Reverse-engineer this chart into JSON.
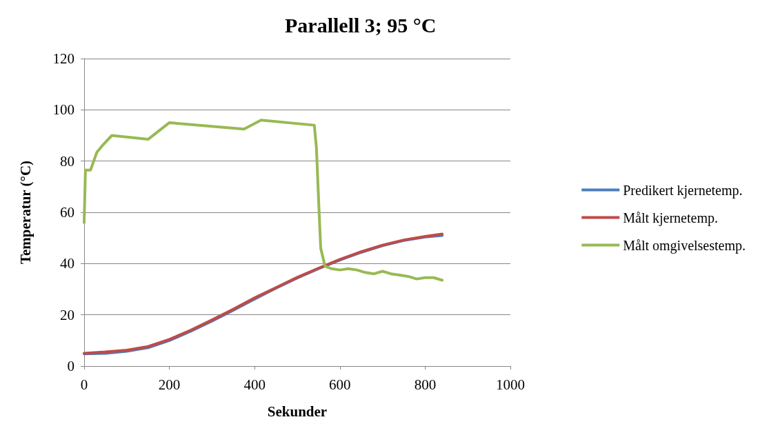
{
  "chart_data": {
    "type": "line",
    "title": "Parallell 3; 95 °C",
    "xlabel": "Sekunder",
    "ylabel": "Temperatur (°C)",
    "xlim": [
      0,
      1000
    ],
    "xticks": [
      0,
      200,
      400,
      600,
      800,
      1000
    ],
    "ylim": [
      0,
      120
    ],
    "yticks": [
      0,
      20,
      40,
      60,
      80,
      100,
      120
    ],
    "grid": "y",
    "legend": "right",
    "marker": "none",
    "line_style": "solid",
    "series": [
      {
        "name": "Predikert kjernetemp.",
        "color": "#4a7ebb",
        "x": [
          0,
          50,
          100,
          150,
          200,
          250,
          300,
          350,
          400,
          450,
          500,
          550,
          600,
          650,
          700,
          750,
          800,
          840
        ],
        "values": [
          4.8,
          5,
          5.8,
          7.2,
          10,
          13.6,
          17.6,
          21.8,
          26.2,
          30.4,
          34.4,
          38,
          41.4,
          44.4,
          47,
          49,
          50.4,
          51
        ]
      },
      {
        "name": "Målt kjernetemp.",
        "color": "#be4b48",
        "x": [
          0,
          50,
          100,
          150,
          200,
          250,
          300,
          350,
          400,
          450,
          500,
          550,
          600,
          650,
          700,
          750,
          800,
          840
        ],
        "values": [
          5,
          5.5,
          6.2,
          7.6,
          10.4,
          14,
          18,
          22.2,
          26.6,
          30.6,
          34.6,
          38.2,
          41.6,
          44.6,
          47.2,
          49.2,
          50.6,
          51.5
        ]
      },
      {
        "name": "Målt omgivelsestemp.",
        "color": "#98b954",
        "x": [
          0,
          3,
          15,
          30,
          45,
          65,
          150,
          200,
          375,
          415,
          540,
          545,
          550,
          555,
          565,
          580,
          600,
          620,
          640,
          660,
          680,
          700,
          720,
          740,
          760,
          780,
          800,
          820,
          840
        ],
        "values": [
          56,
          76.5,
          76.5,
          83.5,
          86.5,
          90,
          88.5,
          95,
          92.5,
          96,
          94,
          85,
          65,
          46,
          39,
          38,
          37.5,
          38,
          37.5,
          36.5,
          36,
          37,
          36,
          35.5,
          35,
          34,
          34.5,
          34.5,
          33.5
        ]
      }
    ]
  }
}
